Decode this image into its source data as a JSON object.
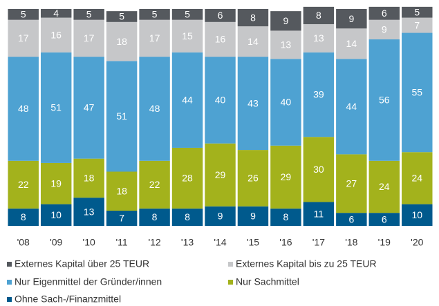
{
  "chart_data": {
    "type": "stacked_bar",
    "categories": [
      "'08",
      "'09",
      "'10",
      "'11",
      "'12",
      "'13",
      "'14",
      "'15",
      "'16",
      "'17",
      "'18",
      "'19",
      "'20"
    ],
    "ylim": [
      0,
      100
    ],
    "series": [
      {
        "name": "Externes Kapital über 25 TEUR",
        "color": "#55595e",
        "values": [
          5,
          4,
          5,
          5,
          5,
          5,
          6,
          8,
          9,
          8,
          9,
          6,
          5
        ]
      },
      {
        "name": "Externes Kapital bis zu 25 TEUR",
        "color": "#c6c7c9",
        "values": [
          17,
          16,
          17,
          18,
          17,
          15,
          16,
          14,
          13,
          13,
          14,
          9,
          7
        ]
      },
      {
        "name": "Nur Eigenmittel der Gründer/innen",
        "color": "#4ea2d2",
        "values": [
          48,
          51,
          47,
          51,
          48,
          44,
          40,
          43,
          40,
          39,
          44,
          56,
          55
        ]
      },
      {
        "name": "Nur Sachmittel",
        "color": "#a3b21c",
        "values": [
          22,
          19,
          18,
          18,
          22,
          28,
          29,
          26,
          29,
          30,
          27,
          24,
          24
        ]
      },
      {
        "name": "Ohne Sach-/Finanzmittel",
        "color": "#005a8d",
        "values": [
          8,
          10,
          13,
          7,
          8,
          8,
          9,
          9,
          8,
          11,
          6,
          6,
          10
        ]
      }
    ]
  }
}
